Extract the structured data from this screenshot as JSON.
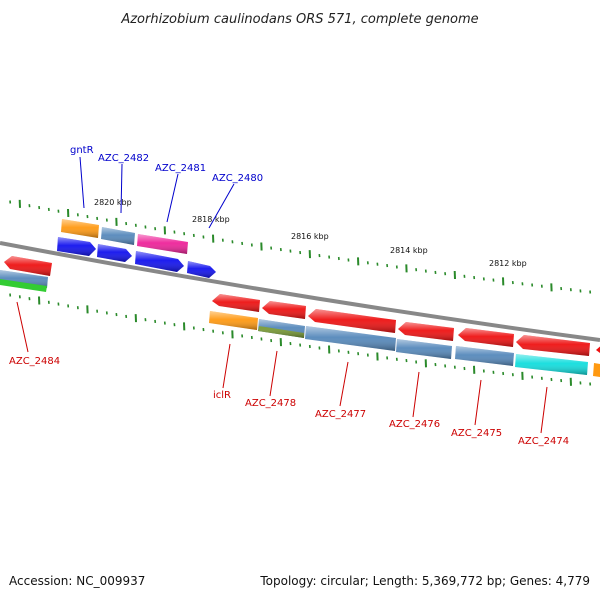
{
  "title": "Azorhizobium caulinodans ORS 571, complete genome",
  "footer": {
    "accession": "Accession: NC_009937",
    "summary": "Topology: circular; Length: 5,369,772 bp; Genes: 4,779"
  },
  "colors": {
    "red": "#ee1111",
    "blue": "#1111ee",
    "steel": "#5588bb",
    "orange": "#ff9911",
    "pink": "#ee2299",
    "green": "#33cc33",
    "olive": "#779933",
    "cyan": "#11dddd",
    "tick": "#2a8a2a",
    "backbone": "#888888"
  },
  "scale_labels": [
    "2820 kbp",
    "2818 kbp",
    "2816 kbp",
    "2814 kbp",
    "2812 kbp"
  ],
  "gene_labels_top": [
    "gntR",
    "AZC_2482",
    "AZC_2481",
    "AZC_2480"
  ],
  "gene_labels_bottom": [
    "AZC_2484",
    "iclR",
    "AZC_2478",
    "AZC_2477",
    "AZC_2476",
    "AZC_2475",
    "AZC_2474"
  ]
}
